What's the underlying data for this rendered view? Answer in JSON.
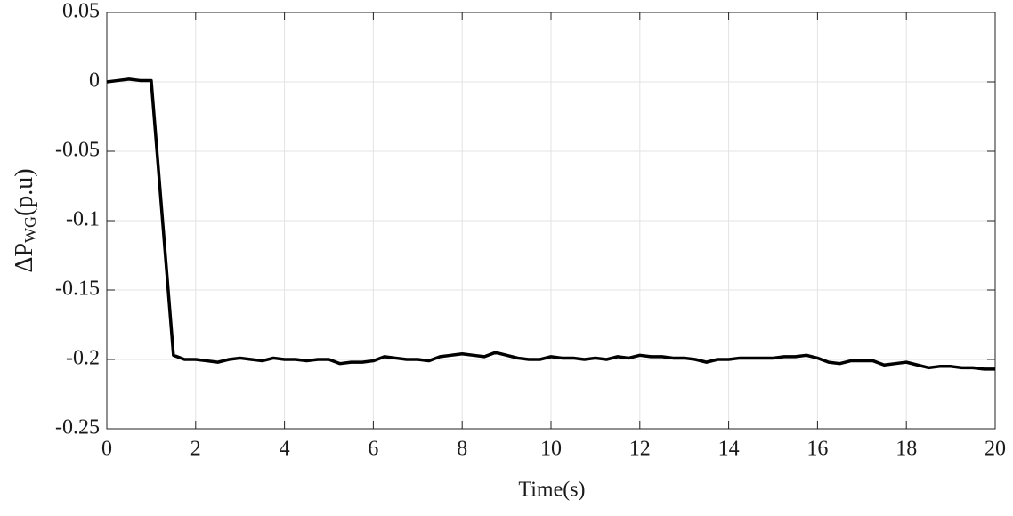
{
  "chart_data": {
    "type": "line",
    "y_label": {
      "main": "ΔP",
      "subscript": "WG",
      "suffix": "(p.u)"
    },
    "x_label": "Time(s)",
    "x": [
      0,
      0.25,
      0.5,
      0.75,
      1.0,
      1.5,
      1.75,
      2.0,
      2.25,
      2.5,
      2.75,
      3,
      3.25,
      3.5,
      3.75,
      4,
      4.25,
      4.5,
      4.75,
      5,
      5.25,
      5.5,
      5.75,
      6,
      6.25,
      6.5,
      6.75,
      7,
      7.25,
      7.5,
      7.75,
      8,
      8.25,
      8.5,
      8.75,
      9,
      9.25,
      9.5,
      9.75,
      10,
      10.25,
      10.5,
      10.75,
      11,
      11.25,
      11.5,
      11.75,
      12,
      12.25,
      12.5,
      12.75,
      13,
      13.25,
      13.5,
      13.75,
      14,
      14.25,
      14.5,
      14.75,
      15,
      15.25,
      15.5,
      15.75,
      16,
      16.25,
      16.5,
      16.75,
      17,
      17.25,
      17.5,
      17.75,
      18,
      18.25,
      18.5,
      18.75,
      19,
      19.25,
      19.5,
      19.75,
      20
    ],
    "series": [
      {
        "color": "#000000",
        "values": [
          0,
          0.001,
          0.002,
          0.001,
          0.001,
          -0.197,
          -0.2,
          -0.2,
          -0.201,
          -0.202,
          -0.2,
          -0.199,
          -0.2,
          -0.201,
          -0.199,
          -0.2,
          -0.2,
          -0.201,
          -0.2,
          -0.2,
          -0.203,
          -0.202,
          -0.202,
          -0.201,
          -0.198,
          -0.199,
          -0.2,
          -0.2,
          -0.201,
          -0.198,
          -0.197,
          -0.196,
          -0.197,
          -0.198,
          -0.195,
          -0.197,
          -0.199,
          -0.2,
          -0.2,
          -0.198,
          -0.199,
          -0.199,
          -0.2,
          -0.199,
          -0.2,
          -0.198,
          -0.199,
          -0.197,
          -0.198,
          -0.198,
          -0.199,
          -0.199,
          -0.2,
          -0.202,
          -0.2,
          -0.2,
          -0.199,
          -0.199,
          -0.199,
          -0.199,
          -0.198,
          -0.198,
          -0.197,
          -0.199,
          -0.202,
          -0.203,
          -0.201,
          -0.201,
          -0.201,
          -0.204,
          -0.203,
          -0.202,
          -0.204,
          -0.206,
          -0.205,
          -0.205,
          -0.206,
          -0.206,
          -0.207,
          -0.207
        ]
      }
    ],
    "xlim": [
      0,
      20
    ],
    "xticks": [
      0,
      2,
      4,
      6,
      8,
      10,
      12,
      14,
      16,
      18,
      20
    ],
    "ylim": [
      -0.25,
      0.05
    ],
    "yticks": [
      0.05,
      0,
      -0.05,
      -0.1,
      -0.15,
      -0.2,
      -0.25
    ],
    "grid": true
  }
}
